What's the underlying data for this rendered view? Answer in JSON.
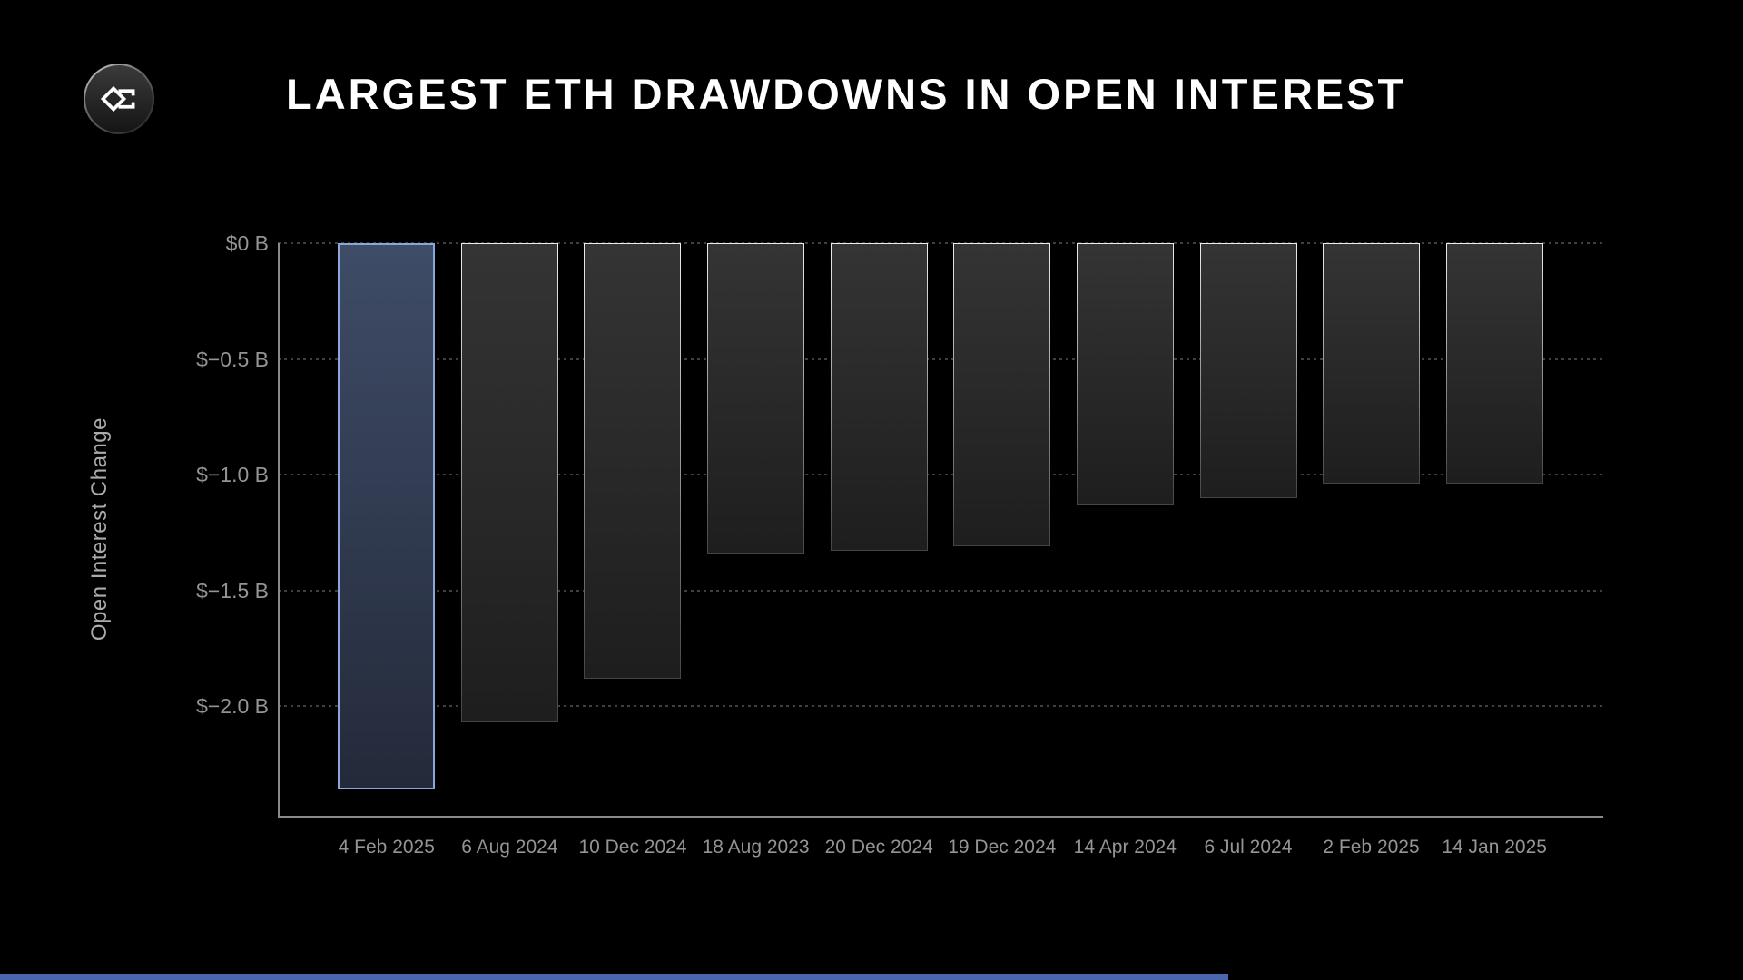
{
  "header": {
    "title": "LARGEST ETH DRAWDOWNS IN OPEN INTEREST"
  },
  "logo": {
    "icon": "angular-sigma-icon"
  },
  "chart_data": {
    "type": "bar",
    "title": "LARGEST ETH DRAWDOWNS IN OPEN INTEREST",
    "xlabel": "",
    "ylabel": "Open Interest Change",
    "unit": "billions USD",
    "categories": [
      "4 Feb 2025",
      "6 Aug 2024",
      "10 Dec 2024",
      "18 Aug 2023",
      "20 Dec 2024",
      "19 Dec 2024",
      "14 Apr 2024",
      "6 Jul 2024",
      "2 Feb 2025",
      "14 Jan 2025"
    ],
    "values": [
      -2.36,
      -2.07,
      -1.88,
      -1.34,
      -1.33,
      -1.31,
      -1.13,
      -1.1,
      -1.04,
      -1.04
    ],
    "highlight_index": 0,
    "yticks": [
      {
        "label": "$0 B",
        "value": 0
      },
      {
        "label": "$−0.5 B",
        "value": -0.5
      },
      {
        "label": "$−1.0 B",
        "value": -1.0
      },
      {
        "label": "$−1.5 B",
        "value": -1.5
      },
      {
        "label": "$−2.0 B",
        "value": -2.0
      }
    ],
    "ylim": [
      -2.47,
      0
    ],
    "grid": {
      "style": "dotted",
      "axis": "horizontal"
    },
    "legend": "none"
  },
  "colors": {
    "background": "#000000",
    "title_text": "#ffffff",
    "tick_text": "#949494",
    "ylabel_text": "#ababab",
    "axis_line": "#8a8a8a",
    "grid_line": "#404040",
    "bar_fill_top": "#343434",
    "bar_fill_bottom": "#1e1e1e",
    "bar_border_top": "#ededed",
    "bar_border_bottom": "#454545",
    "highlight_fill_top": "#3f4c67",
    "highlight_fill_bottom": "#232a3a",
    "highlight_border": "#8ba6d9",
    "accent_bar": "#4a67ae"
  }
}
